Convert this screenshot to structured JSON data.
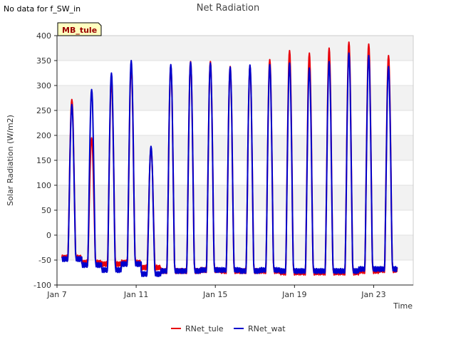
{
  "notice": "No data for f_SW_in",
  "chart_data": {
    "type": "line",
    "title": "Net Radiation",
    "xlabel": "Time",
    "ylabel": "Solar Radiation (W/m2)",
    "site_badge": "MB_tule",
    "x_axis": {
      "kind": "date",
      "range": [
        "2024-01-07",
        "2024-01-25"
      ],
      "ticks": [
        "Jan 7",
        "Jan 11",
        "Jan 15",
        "Jan 19",
        "Jan 23"
      ],
      "tick_dates": [
        "2024-01-07",
        "2024-01-11",
        "2024-01-15",
        "2024-01-19",
        "2024-01-23"
      ]
    },
    "y_axis": {
      "range": [
        -100,
        400
      ],
      "ticks": [
        -100,
        -50,
        0,
        50,
        100,
        150,
        200,
        250,
        300,
        350,
        400
      ]
    },
    "grid": "horizontal bands",
    "legend": "bottom-center",
    "series": [
      {
        "name": "RNet_tule",
        "color": "#e8000b",
        "daily_peaks": [
          272,
          195,
          310,
          340,
          175,
          340,
          348,
          348,
          338,
          340,
          352,
          370,
          365,
          375,
          387,
          383,
          360
        ],
        "night_baseline": [
          -45,
          -55,
          -58,
          -55,
          -65,
          -72,
          -72,
          -70,
          -72,
          -72,
          -72,
          -75,
          -75,
          -75,
          -75,
          -72,
          -70
        ]
      },
      {
        "name": "RNet_wat",
        "color": "#0000cc",
        "daily_peaks": [
          262,
          292,
          325,
          350,
          178,
          342,
          347,
          345,
          337,
          341,
          342,
          345,
          335,
          348,
          365,
          360,
          338
        ],
        "night_baseline": [
          -48,
          -60,
          -70,
          -58,
          -78,
          -72,
          -72,
          -70,
          -70,
          -72,
          -70,
          -72,
          -72,
          -72,
          -72,
          -68,
          -68
        ]
      }
    ]
  }
}
